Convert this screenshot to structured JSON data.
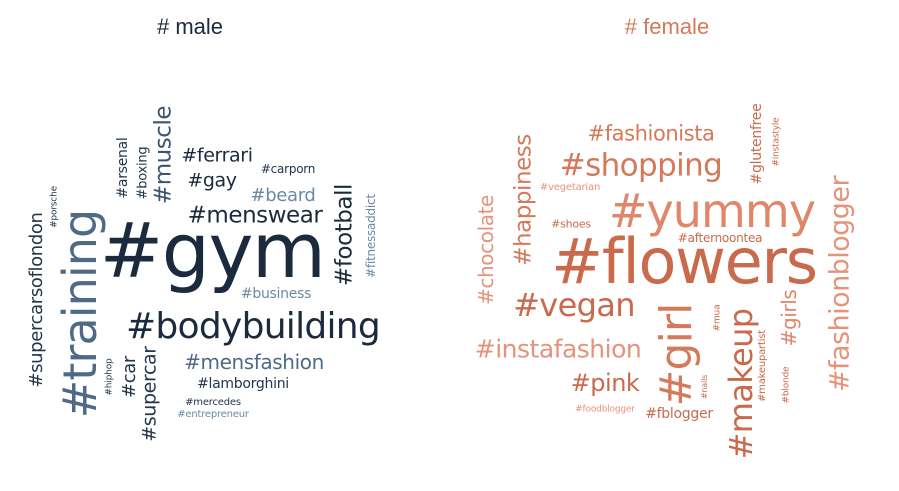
{
  "male": {
    "title": "# male",
    "title_color": "#1b2a3d",
    "words": [
      {
        "text": "#gym",
        "color": "#1b2a3d"
      },
      {
        "text": "#training",
        "color": "#4e6a86"
      },
      {
        "text": "#bodybuilding",
        "color": "#1b2a3d"
      },
      {
        "text": "#supercarsoflondon",
        "color": "#23364c"
      },
      {
        "text": "#muscle",
        "color": "#3a556f"
      },
      {
        "text": "#menswear",
        "color": "#1b2a3d"
      },
      {
        "text": "#football",
        "color": "#1b2a3d"
      },
      {
        "text": "#mensfashion",
        "color": "#4e6a86"
      },
      {
        "text": "#ferrari",
        "color": "#1b2a3d"
      },
      {
        "text": "#gay",
        "color": "#1b2a3d"
      },
      {
        "text": "#beard",
        "color": "#6a8aa6"
      },
      {
        "text": "#supercar",
        "color": "#23364c"
      },
      {
        "text": "#car",
        "color": "#23364c"
      },
      {
        "text": "#arsenal",
        "color": "#23364c"
      },
      {
        "text": "#boxing",
        "color": "#23364c"
      },
      {
        "text": "#lamborghini",
        "color": "#23364c"
      },
      {
        "text": "#business",
        "color": "#6a8aa6"
      },
      {
        "text": "#fitnessaddict",
        "color": "#6a8aa6"
      },
      {
        "text": "#carporn",
        "color": "#23364c"
      },
      {
        "text": "#porsche",
        "color": "#23364c"
      },
      {
        "text": "#hiphop",
        "color": "#23364c"
      },
      {
        "text": "#mercedes",
        "color": "#23364c"
      },
      {
        "text": "#entrepreneur",
        "color": "#6a8aa6"
      }
    ]
  },
  "female": {
    "title": "# female",
    "title_color": "#d4795a",
    "words": [
      {
        "text": "#flowers",
        "color": "#c96a4c"
      },
      {
        "text": "#yummy",
        "color": "#e0866a"
      },
      {
        "text": "#girl",
        "color": "#d4795a"
      },
      {
        "text": "#makeup",
        "color": "#c96a4c"
      },
      {
        "text": "#fashionblogger",
        "color": "#e5937a"
      },
      {
        "text": "#shopping",
        "color": "#d4795a"
      },
      {
        "text": "#vegan",
        "color": "#c96a4c"
      },
      {
        "text": "#instafashion",
        "color": "#e5937a"
      },
      {
        "text": "#happiness",
        "color": "#d4795a"
      },
      {
        "text": "#chocolate",
        "color": "#e5937a"
      },
      {
        "text": "#fashionista",
        "color": "#d4795a"
      },
      {
        "text": "#pink",
        "color": "#c96a4c"
      },
      {
        "text": "#girls",
        "color": "#e0866a"
      },
      {
        "text": "#glutenfree",
        "color": "#c96a4c"
      },
      {
        "text": "#fblogger",
        "color": "#c96a4c"
      },
      {
        "text": "#afternoontea",
        "color": "#c96a4c"
      },
      {
        "text": "#shoes",
        "color": "#c96a4c"
      },
      {
        "text": "#vegetarian",
        "color": "#e5937a"
      },
      {
        "text": "#instastyle",
        "color": "#c96a4c"
      },
      {
        "text": "#mua",
        "color": "#c96a4c"
      },
      {
        "text": "#makeupartist",
        "color": "#c96a4c"
      },
      {
        "text": "#foodblogger",
        "color": "#e5937a"
      },
      {
        "text": "#nails",
        "color": "#c96a4c"
      },
      {
        "text": "#blonde",
        "color": "#c96a4c"
      }
    ]
  }
}
